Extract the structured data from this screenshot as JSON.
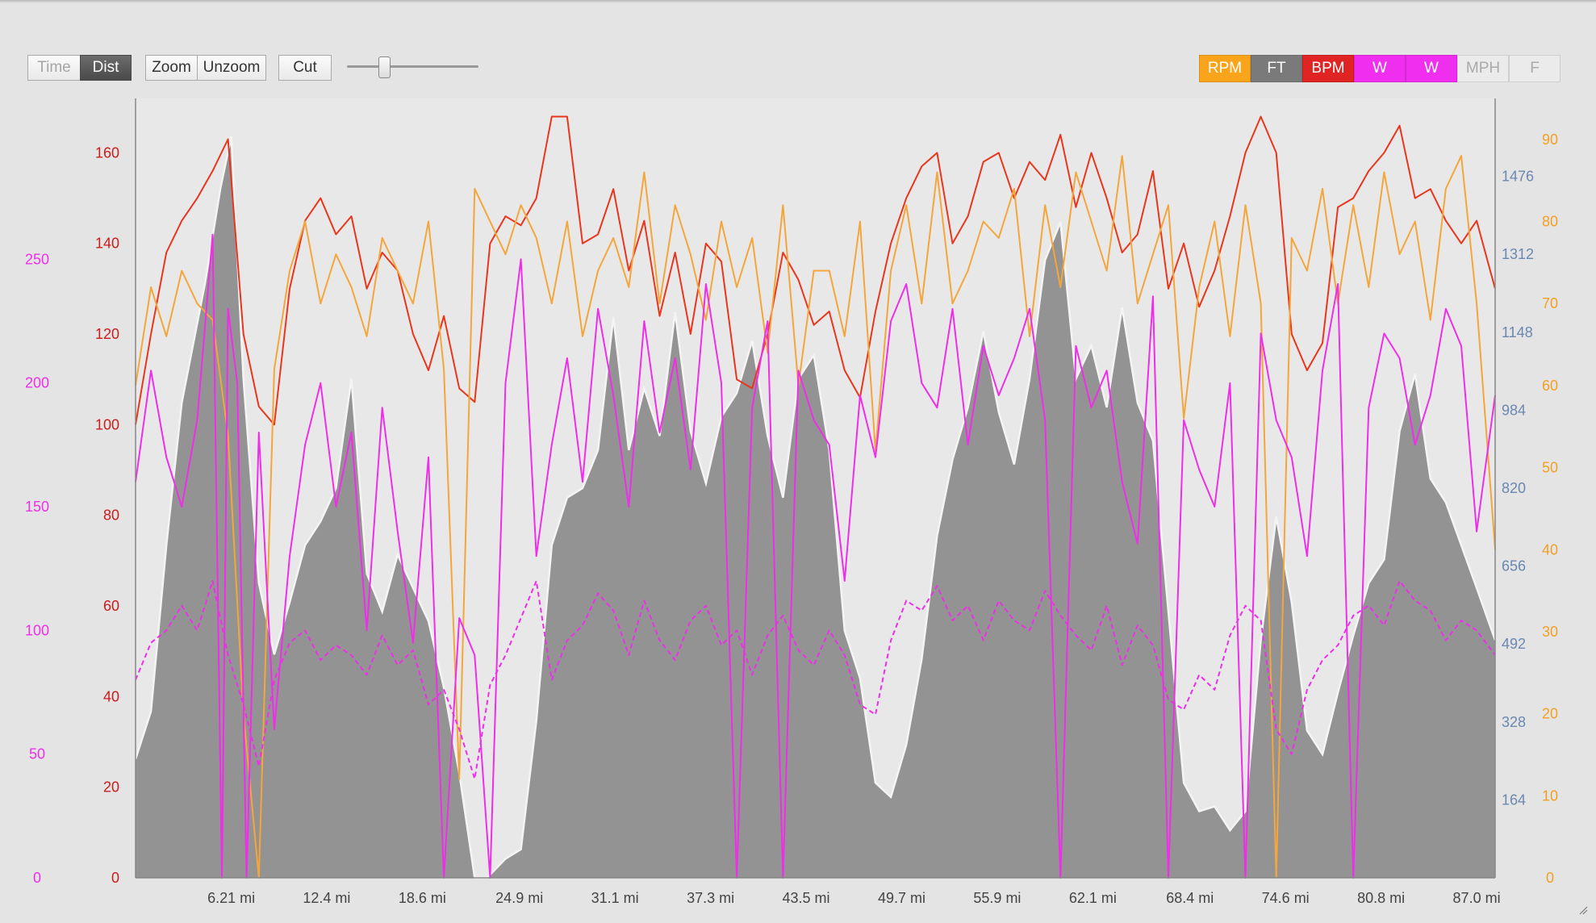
{
  "toolbar": {
    "time_label": "Time",
    "dist_label": "Dist",
    "zoom_label": "Zoom",
    "unzoom_label": "Unzoom",
    "cut_label": "Cut",
    "slider_value": 0.28
  },
  "series_buttons": [
    {
      "label": "RPM",
      "bg": "#f9a41b",
      "fg": "#ffffff",
      "active": true
    },
    {
      "label": "FT",
      "bg": "#7a7a7a",
      "fg": "#ffffff",
      "active": true
    },
    {
      "label": "BPM",
      "bg": "#e02424",
      "fg": "#ffffff",
      "active": true
    },
    {
      "label": "W",
      "bg": "#f02ef0",
      "fg": "#ffffff",
      "active": true
    },
    {
      "label": "W",
      "bg": "#f02ef0",
      "fg": "#ffffff",
      "active": true
    },
    {
      "label": "MPH",
      "bg": "#ebebeb",
      "fg": "#aaaaaa",
      "active": false
    },
    {
      "label": "F",
      "bg": "#ebebeb",
      "fg": "#aaaaaa",
      "active": false
    }
  ],
  "chart_data": {
    "type": "line",
    "x_unit": "mi",
    "x_range": [
      0,
      88.2
    ],
    "x_ticks": [
      "6.21 mi",
      "12.4 mi",
      "18.6 mi",
      "24.9 mi",
      "31.1 mi",
      "37.3 mi",
      "43.5 mi",
      "49.7 mi",
      "55.9 mi",
      "62.1 mi",
      "68.4 mi",
      "74.6 mi",
      "80.8 mi",
      "87.0 mi"
    ],
    "x_tick_values": [
      6.21,
      12.4,
      18.6,
      24.9,
      31.1,
      37.3,
      43.5,
      49.7,
      55.9,
      62.1,
      68.4,
      74.6,
      80.8,
      87.0
    ],
    "axes": {
      "power": {
        "side": "left-outer",
        "color": "#ee2ee9",
        "range": [
          0,
          315
        ],
        "ticks": [
          0,
          50,
          100,
          150,
          200,
          250
        ]
      },
      "heart_rate": {
        "side": "left-inner",
        "color": "#cc1b1b",
        "range": [
          0,
          172
        ],
        "ticks": [
          0,
          20,
          40,
          60,
          80,
          100,
          120,
          140,
          160
        ]
      },
      "elevation": {
        "side": "right-inner",
        "color": "#6b88b0",
        "range": [
          0,
          1640
        ],
        "ticks": [
          164,
          328,
          492,
          656,
          820,
          984,
          1148,
          1312,
          1476
        ]
      },
      "cadence": {
        "side": "right-outer",
        "color": "#f2a024",
        "range": [
          0,
          95
        ],
        "ticks": [
          0,
          10,
          20,
          30,
          40,
          50,
          60,
          70,
          80,
          90
        ]
      }
    },
    "series": [
      {
        "name": "FT",
        "axis": "elevation",
        "color": "#8b8b8b",
        "style": "area",
        "x": [
          0,
          1,
          2,
          3,
          4.5,
          5.5,
          6.21,
          7,
          8,
          9,
          10,
          11,
          12,
          13,
          14,
          15,
          16,
          17,
          18,
          19,
          20,
          21,
          22,
          22.8,
          24,
          25,
          26,
          27,
          28,
          29,
          30,
          31,
          32,
          33,
          34,
          35,
          36,
          37,
          38,
          39,
          40,
          41,
          42,
          43,
          44,
          45,
          46,
          47,
          48,
          49,
          50,
          51,
          52,
          53,
          54,
          55,
          56,
          57,
          58,
          59,
          60,
          61,
          62,
          63,
          64,
          65,
          66,
          67,
          68,
          69,
          70,
          71,
          72,
          73,
          74,
          75,
          76,
          77,
          78,
          79,
          80,
          81,
          82,
          83,
          84,
          85,
          86,
          87,
          88.2
        ],
        "y": [
          250,
          350,
          700,
          1000,
          1250,
          1450,
          1560,
          1050,
          620,
          470,
          580,
          700,
          750,
          820,
          1050,
          640,
          560,
          680,
          610,
          540,
          400,
          220,
          0,
          0,
          40,
          60,
          330,
          700,
          800,
          820,
          900,
          1180,
          900,
          1030,
          930,
          1190,
          940,
          830,
          970,
          1020,
          1130,
          930,
          800,
          1050,
          1100,
          900,
          520,
          420,
          200,
          170,
          280,
          460,
          720,
          880,
          990,
          1150,
          980,
          870,
          1050,
          1300,
          1380,
          1050,
          1120,
          990,
          1200,
          1000,
          920,
          560,
          200,
          140,
          150,
          100,
          140,
          500,
          760,
          580,
          310,
          260,
          390,
          510,
          620,
          670,
          940,
          1060,
          840,
          790,
          700,
          610,
          500
        ]
      },
      {
        "name": "BPM",
        "axis": "heart_rate",
        "color": "#e8361d",
        "style": "line",
        "x": [
          0,
          1,
          2,
          3,
          4,
          5,
          6,
          7,
          8,
          9,
          10,
          11,
          12,
          13,
          14,
          15,
          16,
          17,
          18,
          19,
          20,
          21,
          22,
          23,
          24,
          25,
          26,
          27,
          28,
          29,
          30,
          31,
          32,
          33,
          34,
          35,
          36,
          37,
          38,
          39,
          40,
          41,
          42,
          43,
          44,
          45,
          46,
          47,
          48,
          49,
          50,
          51,
          52,
          53,
          54,
          55,
          56,
          57,
          58,
          59,
          60,
          61,
          62,
          63,
          64,
          65,
          66,
          67,
          68,
          69,
          70,
          71,
          72,
          73,
          74,
          75,
          76,
          77,
          78,
          79,
          80,
          81,
          82,
          83,
          84,
          85,
          86,
          87,
          88.2
        ],
        "y": [
          100,
          120,
          138,
          145,
          150,
          156,
          163,
          120,
          104,
          100,
          130,
          145,
          150,
          142,
          146,
          130,
          138,
          134,
          120,
          112,
          124,
          108,
          105,
          140,
          146,
          144,
          150,
          168,
          168,
          140,
          142,
          152,
          134,
          145,
          124,
          138,
          120,
          140,
          136,
          110,
          108,
          120,
          138,
          132,
          122,
          125,
          112,
          106,
          125,
          140,
          150,
          157,
          160,
          140,
          146,
          158,
          160,
          150,
          158,
          154,
          164,
          148,
          160,
          150,
          138,
          142,
          156,
          130,
          140,
          126,
          134,
          146,
          160,
          168,
          160,
          120,
          112,
          118,
          148,
          150,
          156,
          160,
          166,
          150,
          152,
          145,
          140,
          145,
          130
        ]
      },
      {
        "name": "RPM",
        "axis": "cadence",
        "color": "#f4a63c",
        "style": "line",
        "x": [
          0,
          1,
          2,
          3,
          4,
          5,
          6,
          7,
          8,
          9,
          10,
          11,
          12,
          13,
          14,
          15,
          16,
          17,
          18,
          19,
          20,
          21,
          22,
          23,
          24,
          25,
          26,
          27,
          28,
          29,
          30,
          31,
          32,
          33,
          34,
          35,
          36,
          37,
          38,
          39,
          40,
          41,
          42,
          43,
          44,
          45,
          46,
          47,
          48,
          49,
          50,
          51,
          52,
          53,
          54,
          55,
          56,
          57,
          58,
          59,
          60,
          61,
          62,
          63,
          64,
          65,
          66,
          67,
          68,
          69,
          70,
          71,
          72,
          73,
          74,
          75,
          76,
          77,
          78,
          79,
          80,
          81,
          82,
          83,
          84,
          85,
          86,
          87,
          88.2
        ],
        "y": [
          60,
          72,
          66,
          74,
          70,
          68,
          54,
          20,
          0,
          62,
          74,
          80,
          70,
          76,
          72,
          66,
          78,
          74,
          70,
          80,
          62,
          12,
          84,
          80,
          76,
          82,
          78,
          70,
          80,
          66,
          74,
          78,
          72,
          86,
          70,
          82,
          76,
          68,
          80,
          72,
          78,
          64,
          82,
          60,
          74,
          74,
          66,
          80,
          52,
          74,
          82,
          70,
          86,
          70,
          74,
          80,
          78,
          84,
          66,
          82,
          72,
          86,
          80,
          74,
          88,
          70,
          76,
          82,
          56,
          72,
          80,
          66,
          82,
          70,
          0,
          78,
          74,
          84,
          70,
          82,
          72,
          86,
          76,
          80,
          68,
          84,
          88,
          70,
          40
        ]
      },
      {
        "name": "W",
        "axis": "power",
        "color": "#ee2ee9",
        "style": "line",
        "x": [
          0,
          1,
          2,
          3,
          4,
          5,
          5.6,
          6,
          6.6,
          7.2,
          8,
          9,
          10,
          11,
          12,
          13,
          14,
          15,
          16,
          17,
          18,
          19,
          20,
          21,
          22,
          23,
          24,
          25,
          26,
          27,
          28,
          29,
          30,
          31,
          32,
          33,
          34,
          35,
          36,
          37,
          38,
          39,
          40,
          41,
          42,
          43,
          44,
          45,
          46,
          47,
          48,
          49,
          50,
          51,
          52,
          53,
          54,
          55,
          56,
          57,
          58,
          59,
          60,
          61,
          62,
          63,
          64,
          65,
          66,
          67,
          68,
          69,
          70,
          71,
          72,
          73,
          74,
          75,
          76,
          77,
          78,
          79,
          80,
          81,
          82,
          83,
          84,
          85,
          86,
          87,
          88.2
        ],
        "y": [
          160,
          205,
          170,
          150,
          185,
          260,
          0,
          230,
          200,
          0,
          180,
          60,
          130,
          175,
          200,
          150,
          180,
          100,
          190,
          140,
          95,
          170,
          0,
          105,
          90,
          0,
          200,
          250,
          130,
          175,
          210,
          160,
          230,
          195,
          150,
          225,
          180,
          210,
          165,
          240,
          200,
          0,
          190,
          225,
          0,
          205,
          185,
          175,
          120,
          195,
          170,
          225,
          240,
          200,
          190,
          230,
          175,
          215,
          195,
          210,
          230,
          185,
          0,
          215,
          190,
          205,
          160,
          135,
          235,
          0,
          185,
          165,
          150,
          200,
          0,
          220,
          185,
          170,
          130,
          205,
          240,
          0,
          190,
          220,
          210,
          175,
          195,
          230,
          215,
          140,
          195
        ]
      },
      {
        "name": "W",
        "axis": "power",
        "color": "#ee2ee9",
        "style": "dashed",
        "x": [
          0,
          1,
          2,
          3,
          4,
          5,
          6,
          7,
          8,
          9,
          10,
          11,
          12,
          13,
          14,
          15,
          16,
          17,
          18,
          19,
          20,
          21,
          22,
          23,
          24,
          25,
          26,
          27,
          28,
          29,
          30,
          31,
          32,
          33,
          34,
          35,
          36,
          37,
          38,
          39,
          40,
          41,
          42,
          43,
          44,
          45,
          46,
          47,
          48,
          49,
          50,
          51,
          52,
          53,
          54,
          55,
          56,
          57,
          58,
          59,
          60,
          61,
          62,
          63,
          64,
          65,
          66,
          67,
          68,
          69,
          70,
          71,
          72,
          73,
          74,
          75,
          76,
          77,
          78,
          79,
          80,
          81,
          82,
          83,
          84,
          85,
          86,
          87,
          88.2
        ],
        "y": [
          80,
          95,
          100,
          110,
          100,
          120,
          90,
          70,
          45,
          80,
          95,
          100,
          88,
          94,
          90,
          82,
          98,
          86,
          92,
          70,
          76,
          60,
          40,
          78,
          90,
          105,
          120,
          80,
          96,
          102,
          115,
          108,
          90,
          112,
          96,
          88,
          104,
          110,
          94,
          100,
          82,
          98,
          106,
          92,
          86,
          100,
          90,
          70,
          66,
          96,
          112,
          108,
          118,
          104,
          110,
          96,
          112,
          104,
          100,
          116,
          106,
          98,
          92,
          110,
          86,
          102,
          94,
          72,
          68,
          82,
          76,
          98,
          110,
          104,
          60,
          50,
          76,
          88,
          94,
          106,
          110,
          102,
          120,
          112,
          108,
          96,
          104,
          100,
          90
        ]
      }
    ]
  }
}
